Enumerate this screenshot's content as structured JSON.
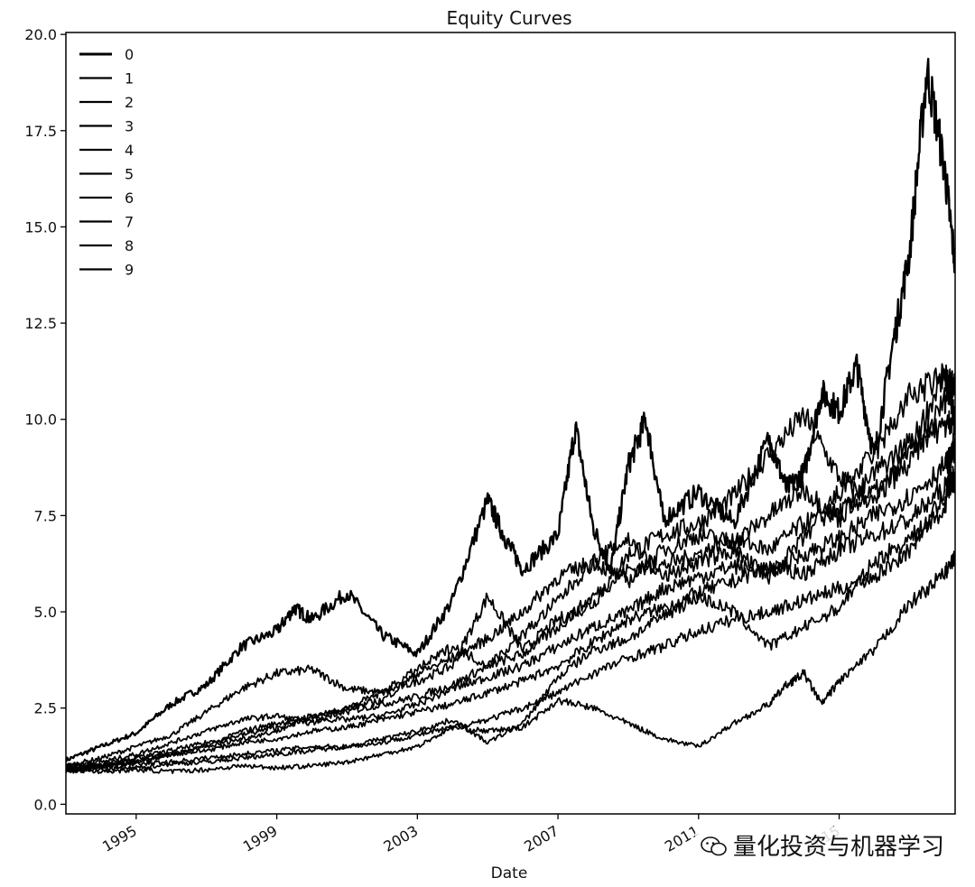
{
  "chart_data": {
    "type": "line",
    "title": "Equity Curves",
    "xlabel": "Date",
    "ylabel": "",
    "xlim": [
      1993.0,
      2018.3
    ],
    "ylim": [
      -0.25,
      20.05
    ],
    "yticks": [
      0.0,
      2.5,
      5.0,
      7.5,
      10.0,
      12.5,
      15.0,
      17.5,
      20.0
    ],
    "ytick_labels": [
      "0.0",
      "2.5",
      "5.0",
      "7.5",
      "10.0",
      "12.5",
      "15.0",
      "17.5",
      "20.0"
    ],
    "xticks": [
      1995,
      1999,
      2003,
      2007,
      2011,
      2015
    ],
    "xtick_labels": [
      "1995",
      "1999",
      "2003",
      "2007",
      "2011",
      "2015"
    ],
    "grid": false,
    "legend_position": "upper-left",
    "line_color": "#000000",
    "series": [
      {
        "name": "0",
        "points": [
          [
            1993.0,
            1.15
          ],
          [
            1994.0,
            1.5
          ],
          [
            1995.0,
            1.85
          ],
          [
            1996.0,
            2.6
          ],
          [
            1997.0,
            3.1
          ],
          [
            1998.0,
            4.1
          ],
          [
            1999.0,
            4.5
          ],
          [
            1999.5,
            5.1
          ],
          [
            2000.0,
            4.8
          ],
          [
            2001.0,
            5.5
          ],
          [
            2002.0,
            4.4
          ],
          [
            2003.0,
            3.9
          ],
          [
            2004.0,
            5.3
          ],
          [
            2005.0,
            7.9
          ],
          [
            2005.5,
            6.9
          ],
          [
            2006.0,
            6.1
          ],
          [
            2007.0,
            7.0
          ],
          [
            2007.5,
            9.8
          ],
          [
            2008.0,
            7.2
          ],
          [
            2008.5,
            6.1
          ],
          [
            2009.0,
            8.8
          ],
          [
            2009.5,
            10.0
          ],
          [
            2010.0,
            7.4
          ],
          [
            2011.0,
            8.1
          ],
          [
            2012.0,
            7.3
          ],
          [
            2013.0,
            9.5
          ],
          [
            2013.5,
            8.2
          ],
          [
            2014.0,
            8.6
          ],
          [
            2014.5,
            10.7
          ],
          [
            2015.0,
            10.2
          ],
          [
            2015.5,
            11.4
          ],
          [
            2016.0,
            9.0
          ],
          [
            2016.5,
            11.8
          ],
          [
            2017.0,
            14.3
          ],
          [
            2017.5,
            19.1
          ],
          [
            2018.0,
            16.5
          ],
          [
            2018.3,
            14.0
          ]
        ]
      },
      {
        "name": "1",
        "points": [
          [
            1993.0,
            1.0
          ],
          [
            1994.0,
            1.2
          ],
          [
            1995.0,
            1.5
          ],
          [
            1996.0,
            1.8
          ],
          [
            1997.0,
            2.4
          ],
          [
            1998.0,
            3.0
          ],
          [
            1999.0,
            3.4
          ],
          [
            2000.0,
            3.5
          ],
          [
            2001.0,
            3.0
          ],
          [
            2002.0,
            2.9
          ],
          [
            2003.0,
            3.2
          ],
          [
            2004.0,
            3.6
          ],
          [
            2005.0,
            5.4
          ],
          [
            2006.0,
            4.0
          ],
          [
            2007.0,
            4.8
          ],
          [
            2008.0,
            5.2
          ],
          [
            2009.0,
            6.5
          ],
          [
            2010.0,
            7.0
          ],
          [
            2011.0,
            7.3
          ],
          [
            2012.0,
            8.0
          ],
          [
            2013.0,
            9.1
          ],
          [
            2014.0,
            10.1
          ],
          [
            2015.0,
            8.5
          ],
          [
            2016.0,
            7.8
          ],
          [
            2017.0,
            9.2
          ],
          [
            2018.0,
            11.2
          ],
          [
            2018.3,
            10.0
          ]
        ]
      },
      {
        "name": "2",
        "points": [
          [
            1993.0,
            0.9
          ],
          [
            1994.0,
            1.0
          ],
          [
            1995.0,
            1.1
          ],
          [
            1996.0,
            1.3
          ],
          [
            1997.0,
            1.5
          ],
          [
            1998.0,
            1.9
          ],
          [
            1999.0,
            2.1
          ],
          [
            2000.0,
            2.3
          ],
          [
            2001.0,
            2.4
          ],
          [
            2002.0,
            2.6
          ],
          [
            2003.0,
            2.8
          ],
          [
            2004.0,
            3.1
          ],
          [
            2005.0,
            3.6
          ],
          [
            2006.0,
            3.9
          ],
          [
            2007.0,
            4.6
          ],
          [
            2008.0,
            5.4
          ],
          [
            2009.0,
            6.1
          ],
          [
            2010.0,
            6.2
          ],
          [
            2011.0,
            6.5
          ],
          [
            2012.0,
            6.9
          ],
          [
            2013.0,
            6.6
          ],
          [
            2014.0,
            7.3
          ],
          [
            2015.0,
            7.6
          ],
          [
            2016.0,
            8.1
          ],
          [
            2017.0,
            8.8
          ],
          [
            2018.0,
            10.5
          ],
          [
            2018.3,
            11.0
          ]
        ]
      },
      {
        "name": "3",
        "points": [
          [
            1993.0,
            1.0
          ],
          [
            1994.0,
            1.1
          ],
          [
            1995.0,
            1.3
          ],
          [
            1996.0,
            1.6
          ],
          [
            1997.0,
            1.9
          ],
          [
            1998.0,
            2.2
          ],
          [
            1999.0,
            2.3
          ],
          [
            2000.0,
            2.1
          ],
          [
            2001.0,
            2.5
          ],
          [
            2002.0,
            2.7
          ],
          [
            2003.0,
            3.4
          ],
          [
            2004.0,
            3.8
          ],
          [
            2005.0,
            4.3
          ],
          [
            2006.0,
            5.0
          ],
          [
            2007.0,
            5.9
          ],
          [
            2008.0,
            6.3
          ],
          [
            2009.0,
            5.8
          ],
          [
            2010.0,
            6.6
          ],
          [
            2011.0,
            7.0
          ],
          [
            2012.0,
            6.8
          ],
          [
            2013.0,
            7.5
          ],
          [
            2014.0,
            8.2
          ],
          [
            2015.0,
            7.4
          ],
          [
            2016.0,
            8.6
          ],
          [
            2017.0,
            9.4
          ],
          [
            2018.0,
            9.8
          ],
          [
            2018.3,
            10.1
          ]
        ]
      },
      {
        "name": "4",
        "points": [
          [
            1993.0,
            0.95
          ],
          [
            1994.0,
            1.0
          ],
          [
            1995.0,
            1.2
          ],
          [
            1996.0,
            1.4
          ],
          [
            1997.0,
            1.6
          ],
          [
            1998.0,
            1.8
          ],
          [
            1999.0,
            2.0
          ],
          [
            2000.0,
            2.2
          ],
          [
            2001.0,
            2.2
          ],
          [
            2002.0,
            2.3
          ],
          [
            2003.0,
            2.6
          ],
          [
            2004.0,
            3.0
          ],
          [
            2005.0,
            3.3
          ],
          [
            2006.0,
            3.6
          ],
          [
            2007.0,
            4.1
          ],
          [
            2008.0,
            4.6
          ],
          [
            2009.0,
            5.0
          ],
          [
            2010.0,
            5.6
          ],
          [
            2011.0,
            5.9
          ],
          [
            2012.0,
            6.2
          ],
          [
            2013.0,
            6.0
          ],
          [
            2014.0,
            6.5
          ],
          [
            2015.0,
            6.9
          ],
          [
            2016.0,
            7.5
          ],
          [
            2017.0,
            8.0
          ],
          [
            2018.0,
            8.8
          ],
          [
            2018.3,
            9.2
          ]
        ]
      },
      {
        "name": "5",
        "points": [
          [
            1993.0,
            0.9
          ],
          [
            1994.0,
            0.95
          ],
          [
            1995.0,
            1.1
          ],
          [
            1996.0,
            1.3
          ],
          [
            1997.0,
            1.4
          ],
          [
            1998.0,
            1.6
          ],
          [
            1999.0,
            1.7
          ],
          [
            2000.0,
            1.9
          ],
          [
            2001.0,
            2.0
          ],
          [
            2002.0,
            2.2
          ],
          [
            2003.0,
            2.4
          ],
          [
            2004.0,
            2.6
          ],
          [
            2005.0,
            2.9
          ],
          [
            2006.0,
            3.2
          ],
          [
            2007.0,
            3.6
          ],
          [
            2008.0,
            4.2
          ],
          [
            2009.0,
            4.8
          ],
          [
            2010.0,
            5.1
          ],
          [
            2011.0,
            5.5
          ],
          [
            2012.0,
            5.8
          ],
          [
            2013.0,
            6.2
          ],
          [
            2014.0,
            6.0
          ],
          [
            2015.0,
            6.6
          ],
          [
            2016.0,
            7.0
          ],
          [
            2017.0,
            7.4
          ],
          [
            2018.0,
            8.2
          ],
          [
            2018.3,
            8.6
          ]
        ]
      },
      {
        "name": "6",
        "points": [
          [
            1993.0,
            1.0
          ],
          [
            1994.0,
            1.05
          ],
          [
            1995.0,
            1.2
          ],
          [
            1996.0,
            1.3
          ],
          [
            1997.0,
            1.5
          ],
          [
            1998.0,
            1.7
          ],
          [
            1999.0,
            1.9
          ],
          [
            2000.0,
            2.3
          ],
          [
            2001.0,
            2.5
          ],
          [
            2002.0,
            2.9
          ],
          [
            2003.0,
            3.5
          ],
          [
            2004.0,
            4.1
          ],
          [
            2005.0,
            3.6
          ],
          [
            2006.0,
            4.4
          ],
          [
            2007.0,
            5.3
          ],
          [
            2008.0,
            6.3
          ],
          [
            2009.0,
            6.9
          ],
          [
            2010.0,
            5.9
          ],
          [
            2011.0,
            6.3
          ],
          [
            2012.0,
            6.6
          ],
          [
            2013.0,
            5.9
          ],
          [
            2014.0,
            6.9
          ],
          [
            2015.0,
            8.1
          ],
          [
            2016.0,
            9.1
          ],
          [
            2017.0,
            10.6
          ],
          [
            2018.0,
            11.1
          ],
          [
            2018.3,
            10.8
          ]
        ]
      },
      {
        "name": "7",
        "points": [
          [
            1993.0,
            0.85
          ],
          [
            1994.0,
            0.9
          ],
          [
            1995.0,
            0.95
          ],
          [
            1996.0,
            1.05
          ],
          [
            1997.0,
            1.1
          ],
          [
            1998.0,
            1.2
          ],
          [
            1999.0,
            1.3
          ],
          [
            2000.0,
            1.4
          ],
          [
            2001.0,
            1.5
          ],
          [
            2002.0,
            1.7
          ],
          [
            2003.0,
            1.9
          ],
          [
            2004.0,
            2.2
          ],
          [
            2005.0,
            1.6
          ],
          [
            2006.0,
            2.1
          ],
          [
            2007.0,
            3.3
          ],
          [
            2008.0,
            4.0
          ],
          [
            2009.0,
            4.3
          ],
          [
            2010.0,
            4.9
          ],
          [
            2011.0,
            5.4
          ],
          [
            2012.0,
            5.0
          ],
          [
            2013.0,
            4.1
          ],
          [
            2014.0,
            4.6
          ],
          [
            2015.0,
            5.1
          ],
          [
            2016.0,
            6.3
          ],
          [
            2017.0,
            6.9
          ],
          [
            2018.0,
            7.6
          ],
          [
            2018.3,
            9.9
          ]
        ]
      },
      {
        "name": "8",
        "points": [
          [
            1993.0,
            0.95
          ],
          [
            1994.0,
            1.0
          ],
          [
            1995.0,
            1.05
          ],
          [
            1996.0,
            1.1
          ],
          [
            1997.0,
            1.2
          ],
          [
            1998.0,
            1.3
          ],
          [
            1999.0,
            1.4
          ],
          [
            2000.0,
            1.5
          ],
          [
            2001.0,
            1.5
          ],
          [
            2002.0,
            1.6
          ],
          [
            2003.0,
            1.8
          ],
          [
            2004.0,
            2.0
          ],
          [
            2005.0,
            2.2
          ],
          [
            2006.0,
            2.5
          ],
          [
            2007.0,
            2.9
          ],
          [
            2008.0,
            3.4
          ],
          [
            2009.0,
            3.8
          ],
          [
            2010.0,
            4.1
          ],
          [
            2011.0,
            4.5
          ],
          [
            2012.0,
            4.8
          ],
          [
            2013.0,
            5.0
          ],
          [
            2014.0,
            5.3
          ],
          [
            2015.0,
            5.6
          ],
          [
            2016.0,
            5.9
          ],
          [
            2017.0,
            6.6
          ],
          [
            2018.0,
            8.0
          ],
          [
            2018.3,
            8.4
          ]
        ]
      },
      {
        "name": "9",
        "points": [
          [
            1993.0,
            0.9
          ],
          [
            1994.0,
            0.85
          ],
          [
            1995.0,
            0.9
          ],
          [
            1996.0,
            0.85
          ],
          [
            1997.0,
            0.9
          ],
          [
            1998.0,
            1.0
          ],
          [
            1999.0,
            0.95
          ],
          [
            2000.0,
            1.0
          ],
          [
            2001.0,
            1.1
          ],
          [
            2002.0,
            1.3
          ],
          [
            2003.0,
            1.5
          ],
          [
            2004.0,
            2.0
          ],
          [
            2005.0,
            1.9
          ],
          [
            2006.0,
            2.0
          ],
          [
            2007.0,
            2.7
          ],
          [
            2008.0,
            2.5
          ],
          [
            2009.0,
            2.1
          ],
          [
            2010.0,
            1.7
          ],
          [
            2011.0,
            1.5
          ],
          [
            2012.0,
            2.1
          ],
          [
            2013.0,
            2.6
          ],
          [
            2013.5,
            3.1
          ],
          [
            2014.0,
            3.4
          ],
          [
            2014.5,
            2.6
          ],
          [
            2015.0,
            3.2
          ],
          [
            2016.0,
            4.0
          ],
          [
            2017.0,
            5.2
          ],
          [
            2018.0,
            6.0
          ],
          [
            2018.3,
            6.4
          ]
        ]
      }
    ]
  },
  "watermark": {
    "text": "量化投资与机器学习",
    "icon": "wechat-icon"
  }
}
